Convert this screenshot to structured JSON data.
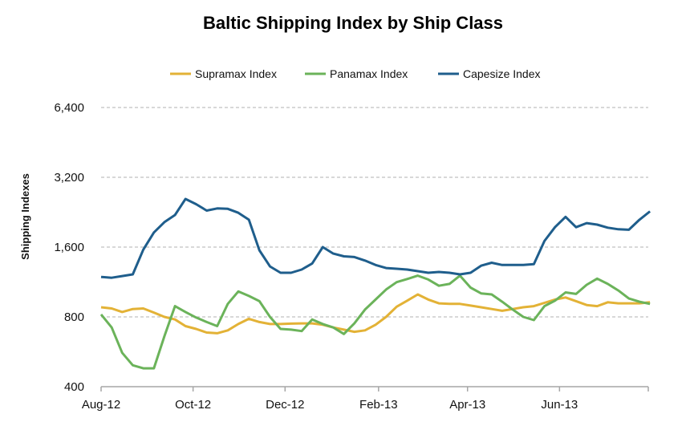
{
  "chart_data": {
    "type": "line",
    "title": "Baltic Shipping Index by Ship Class",
    "xlabel": "",
    "ylabel": "Shipping Indexes",
    "y_scale": "log2",
    "ylim": [
      400,
      6400
    ],
    "y_ticks": [
      400,
      800,
      1600,
      3200,
      6400
    ],
    "y_tick_labels": [
      "400",
      "800",
      "1,600",
      "3,200",
      "6,400"
    ],
    "x_ticks": [
      "2012-08-01",
      "2012-10-01",
      "2012-12-01",
      "2013-02-01",
      "2013-04-01",
      "2013-06-01"
    ],
    "x_tick_labels": [
      "Aug-12",
      "Oct-12",
      "Dec-12",
      "Feb-13",
      "Apr-13",
      "Jun-13"
    ],
    "xlim": [
      "2012-08-01",
      "2013-07-31"
    ],
    "grid": "horizontal dashed",
    "legend_position": "top",
    "x": [
      "2012-08-01",
      "2012-08-08",
      "2012-08-15",
      "2012-08-22",
      "2012-08-29",
      "2012-09-05",
      "2012-09-12",
      "2012-09-19",
      "2012-09-26",
      "2012-10-03",
      "2012-10-10",
      "2012-10-17",
      "2012-10-24",
      "2012-10-31",
      "2012-11-07",
      "2012-11-14",
      "2012-11-21",
      "2012-11-28",
      "2012-12-05",
      "2012-12-12",
      "2012-12-19",
      "2012-12-26",
      "2013-01-02",
      "2013-01-09",
      "2013-01-16",
      "2013-01-23",
      "2013-01-30",
      "2013-02-06",
      "2013-02-13",
      "2013-02-20",
      "2013-02-27",
      "2013-03-06",
      "2013-03-13",
      "2013-03-20",
      "2013-03-27",
      "2013-04-03",
      "2013-04-10",
      "2013-04-17",
      "2013-04-24",
      "2013-05-01",
      "2013-05-08",
      "2013-05-15",
      "2013-05-22",
      "2013-05-29",
      "2013-06-05",
      "2013-06-12",
      "2013-06-19",
      "2013-06-26",
      "2013-07-03",
      "2013-07-10",
      "2013-07-17",
      "2013-07-24",
      "2013-07-31"
    ],
    "series": [
      {
        "name": "Supramax Index",
        "color": "#E3B236",
        "values": [
          880,
          870,
          840,
          865,
          870,
          835,
          800,
          780,
          730,
          710,
          685,
          680,
          700,
          745,
          785,
          760,
          745,
          745,
          748,
          750,
          750,
          740,
          720,
          705,
          690,
          700,
          740,
          800,
          885,
          940,
          1000,
          950,
          915,
          910,
          910,
          895,
          880,
          865,
          850,
          865,
          880,
          890,
          920,
          950,
          970,
          935,
          900,
          890,
          925,
          915,
          915,
          915,
          925
        ]
      },
      {
        "name": "Panamax Index",
        "color": "#6BB35A",
        "values": [
          820,
          720,
          560,
          495,
          480,
          480,
          660,
          890,
          840,
          795,
          760,
          730,
          910,
          1030,
          985,
          935,
          800,
          710,
          705,
          695,
          780,
          745,
          720,
          675,
          750,
          860,
          950,
          1050,
          1130,
          1165,
          1205,
          1160,
          1090,
          1110,
          1205,
          1070,
          1010,
          1000,
          930,
          860,
          800,
          775,
          890,
          940,
          1020,
          1005,
          1100,
          1170,
          1110,
          1040,
          960,
          930,
          910
        ]
      },
      {
        "name": "Capesize Index",
        "color": "#1F5E8C",
        "values": [
          1190,
          1180,
          1200,
          1220,
          1560,
          1850,
          2050,
          2200,
          2580,
          2450,
          2300,
          2350,
          2340,
          2250,
          2100,
          1550,
          1320,
          1240,
          1240,
          1280,
          1360,
          1600,
          1500,
          1460,
          1450,
          1400,
          1340,
          1300,
          1290,
          1280,
          1260,
          1240,
          1250,
          1240,
          1220,
          1240,
          1330,
          1370,
          1340,
          1340,
          1340,
          1350,
          1700,
          1950,
          2160,
          1950,
          2030,
          2000,
          1940,
          1910,
          1900,
          2100,
          2280
        ]
      }
    ]
  }
}
